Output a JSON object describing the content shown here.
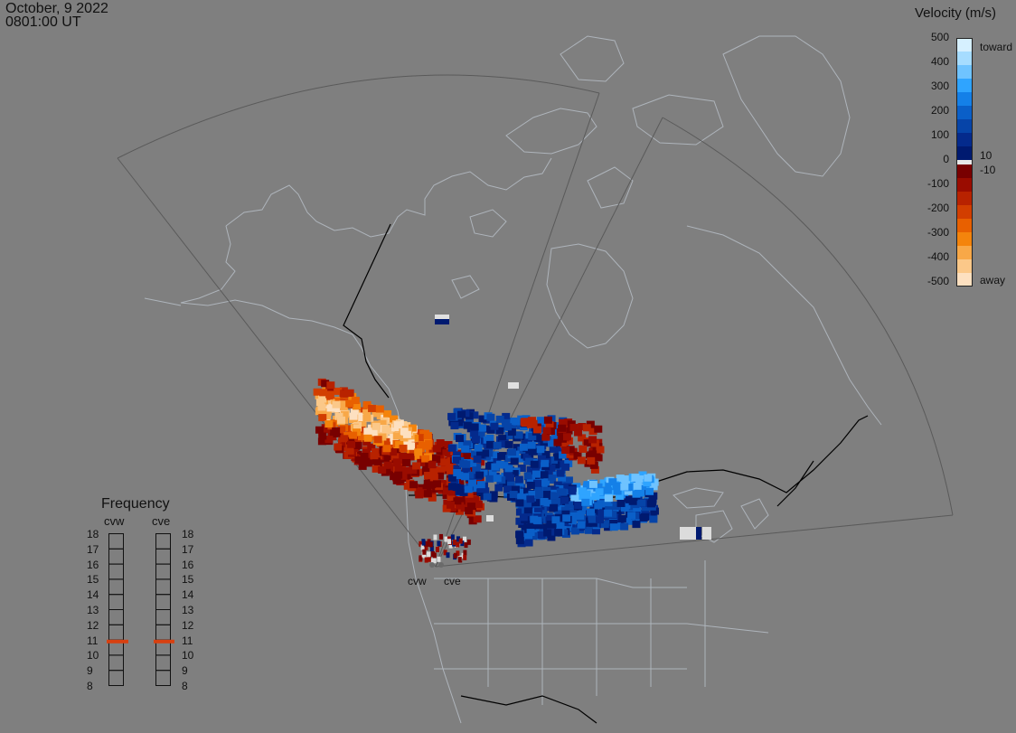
{
  "header": {
    "date": "October, 9 2022",
    "time": "0801:00 UT"
  },
  "colorbar": {
    "title": "Velocity (m/s)",
    "ticks": [
      "500",
      "400",
      "300",
      "200",
      "100",
      "0",
      "-100",
      "-200",
      "-300",
      "-400",
      "-500"
    ],
    "threshold_pos": "10",
    "threshold_neg": "-10",
    "toward_label": "toward",
    "away_label": "away",
    "colors_toward": [
      "#d6f0ff",
      "#a6dcff",
      "#6fc3ff",
      "#2fa4ff",
      "#1480e8",
      "#0a5fc8",
      "#0644a8",
      "#042a8c",
      "#001a70"
    ],
    "colors_away": [
      "#780000",
      "#9a0c00",
      "#b82200",
      "#d23e00",
      "#e86000",
      "#f4840c",
      "#f8a848",
      "#fbc889",
      "#fde0c0"
    ]
  },
  "frequency_panel": {
    "title": "Frequency",
    "radars": [
      {
        "name": "cvw",
        "frequency_mhz": 10.9
      },
      {
        "name": "cve",
        "frequency_mhz": 10.9
      }
    ],
    "scale": [
      "18",
      "17",
      "16",
      "15",
      "14",
      "13",
      "12",
      "11",
      "10",
      "9",
      "8"
    ],
    "marker_color": "#d84010"
  },
  "site_labels": [
    "cvw",
    "cve"
  ],
  "map": {
    "background": "#7f7f7f",
    "coastline_color": "#aeb4bb",
    "border_color": "#000000",
    "fov_color": "#5a5a5a"
  }
}
